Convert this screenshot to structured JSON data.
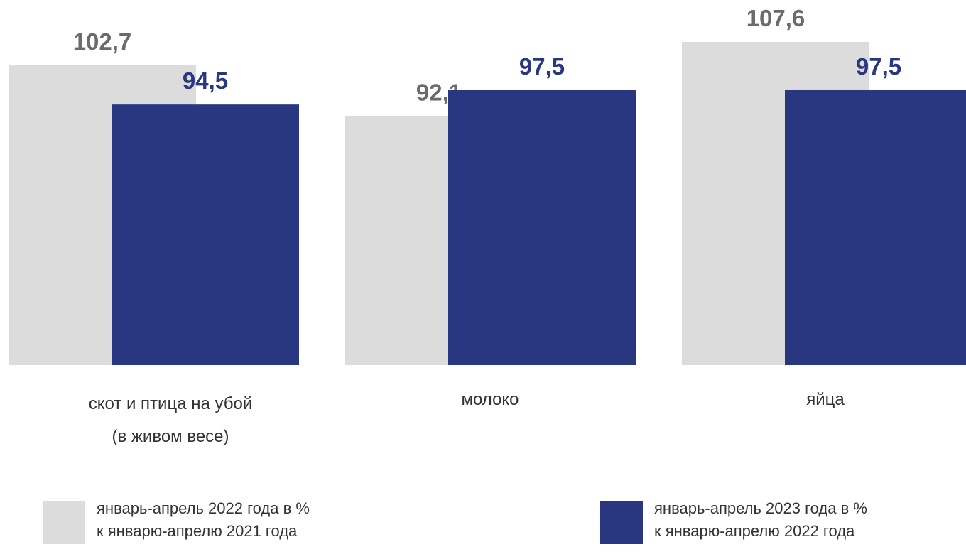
{
  "chart_data": {
    "type": "bar",
    "title": "",
    "xlabel": "",
    "ylabel": "",
    "ylim": [
      40,
      110
    ],
    "grid": false,
    "legend": "bottom",
    "categories": [
      {
        "line1": "скот и птица на убой",
        "line2": "(в живом весе)"
      },
      {
        "line1": "молоко",
        "line2": ""
      },
      {
        "line1": "яйца",
        "line2": ""
      }
    ],
    "series": [
      {
        "name": {
          "line1": "январь-апрель 2022 года в %",
          "line2": "к январю-апрелю 2021 года"
        },
        "color": "#dcdcdc",
        "label_color": "#6b6b6b",
        "values": [
          102.7,
          92.1,
          107.6
        ],
        "labels": [
          "102,7",
          "92,1",
          "107,6"
        ]
      },
      {
        "name": {
          "line1": "январь-апрель 2023 года в %",
          "line2": "к январю-апрелю 2022 года"
        },
        "color": "#293680",
        "label_color": "#293680",
        "values": [
          94.5,
          97.5,
          97.5
        ],
        "labels": [
          "94,5",
          "97,5",
          "97,5"
        ]
      }
    ]
  }
}
